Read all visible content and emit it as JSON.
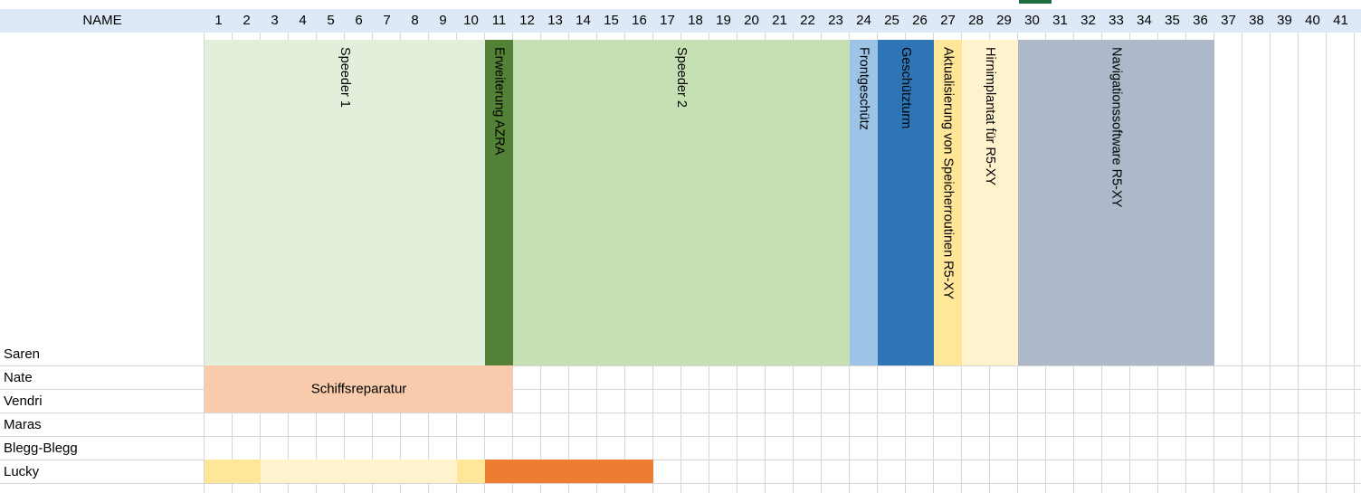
{
  "header": {
    "name_label": "NAME",
    "columns": [
      "1",
      "2",
      "3",
      "4",
      "5",
      "6",
      "7",
      "8",
      "9",
      "10",
      "11",
      "12",
      "13",
      "14",
      "15",
      "16",
      "17",
      "18",
      "19",
      "20",
      "21",
      "22",
      "23",
      "24",
      "25",
      "26",
      "27",
      "28",
      "29",
      "30",
      "31",
      "32",
      "33",
      "34",
      "35",
      "36",
      "37",
      "38",
      "39",
      "40",
      "41"
    ]
  },
  "rows": [
    "Saren",
    "Nate",
    "Vendri",
    "Maras",
    "Blegg-Blegg",
    "Lucky"
  ],
  "saren_tasks": [
    {
      "label": "Speeder 1",
      "start": 1,
      "end": 10,
      "color": "#e2efda"
    },
    {
      "label": "Erweiterung AZRA",
      "start": 11,
      "end": 11,
      "color": "#538135"
    },
    {
      "label": "Speeder 2",
      "start": 12,
      "end": 23,
      "color": "#c6e0b4"
    },
    {
      "label": "Frontgeschütz",
      "start": 24,
      "end": 24,
      "color": "#9dc3e6"
    },
    {
      "label": "Geschützturm",
      "start": 25,
      "end": 26,
      "color": "#2e75b6"
    },
    {
      "label": "Aktualisierung von Speicherroutinen R5-XY",
      "start": 27,
      "end": 27,
      "color": "#ffe699"
    },
    {
      "label": "Hirnimplantat für R5-XY",
      "start": 28,
      "end": 29,
      "color": "#fff2cc"
    },
    {
      "label": "Navigationssoftware R5-XY",
      "start": 30,
      "end": 36,
      "color": "#adb9ca"
    }
  ],
  "merged_task": {
    "label": "Schiffsreparatur",
    "start": 1,
    "end": 11,
    "rows": [
      "Nate",
      "Vendri"
    ],
    "color": "#f8cbad"
  },
  "lucky_tasks": [
    {
      "start": 1,
      "end": 2,
      "color": "#ffe699"
    },
    {
      "start": 3,
      "end": 9,
      "color": "#fff2cc"
    },
    {
      "start": 10,
      "end": 10,
      "color": "#ffe699"
    },
    {
      "start": 11,
      "end": 16,
      "color": "#ed7d31"
    }
  ]
}
